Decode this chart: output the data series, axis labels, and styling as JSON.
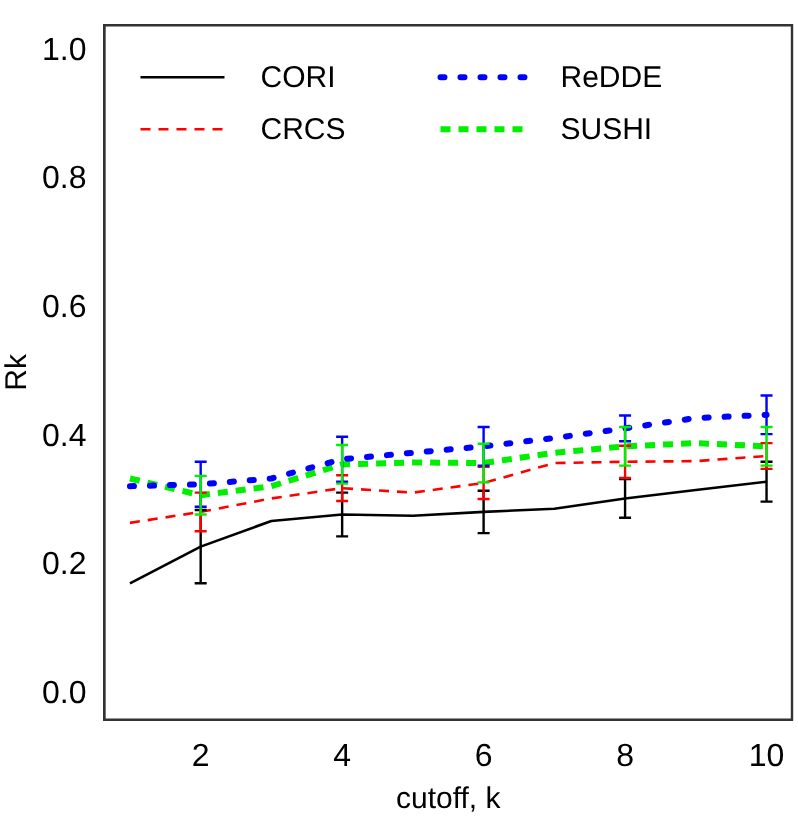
{
  "chart_data": {
    "type": "line",
    "xlabel": "cutoff, k",
    "ylabel": "Rk",
    "x": [
      1,
      2,
      3,
      4,
      5,
      6,
      7,
      8,
      9,
      10
    ],
    "xlim": [
      0.64,
      10.36
    ],
    "xticks": [
      2,
      4,
      6,
      8,
      10
    ],
    "ylim": [
      -0.04,
      1.04
    ],
    "yticks": [
      {
        "value": 0,
        "label": "0.0"
      },
      0.2,
      0.4,
      0.6,
      0.8,
      {
        "value": 1,
        "label": "1.0"
      }
    ],
    "grid": false,
    "legend": "top",
    "marker": "none",
    "series": [
      {
        "name": "CORI",
        "color": "#000000",
        "line_style": "solid",
        "values": [
          0.172,
          0.229,
          0.269,
          0.279,
          0.277,
          0.283,
          0.288,
          0.304,
          0.317,
          0.33
        ],
        "errors": [
          null,
          0.057,
          null,
          0.034,
          null,
          0.033,
          null,
          0.03,
          null,
          0.031
        ]
      },
      {
        "name": "CRCS",
        "color": "#ff0000",
        "line_style": "dashed",
        "values": [
          0.266,
          0.283,
          0.304,
          0.32,
          0.313,
          0.328,
          0.359,
          0.361,
          0.362,
          0.37
        ],
        "errors": [
          null,
          0.03,
          null,
          0.02,
          null,
          0.025,
          null,
          0.025,
          null,
          0.02
        ]
      },
      {
        "name": "ReDDE",
        "color": "#0000ff",
        "line_style": "dotted",
        "values": [
          0.323,
          0.326,
          0.335,
          0.365,
          0.375,
          0.385,
          0.398,
          0.413,
          0.429,
          0.434
        ],
        "errors": [
          null,
          0.035,
          null,
          0.035,
          null,
          0.03,
          null,
          0.02,
          null,
          0.03
        ]
      },
      {
        "name": "SUSHI",
        "color": "#00ee00",
        "line_style": "dashed",
        "values": [
          0.335,
          0.309,
          0.323,
          0.357,
          0.36,
          0.359,
          0.375,
          0.385,
          0.39,
          0.385
        ],
        "errors": [
          null,
          0.03,
          null,
          0.03,
          null,
          0.03,
          null,
          0.03,
          null,
          0.03
        ]
      }
    ]
  }
}
